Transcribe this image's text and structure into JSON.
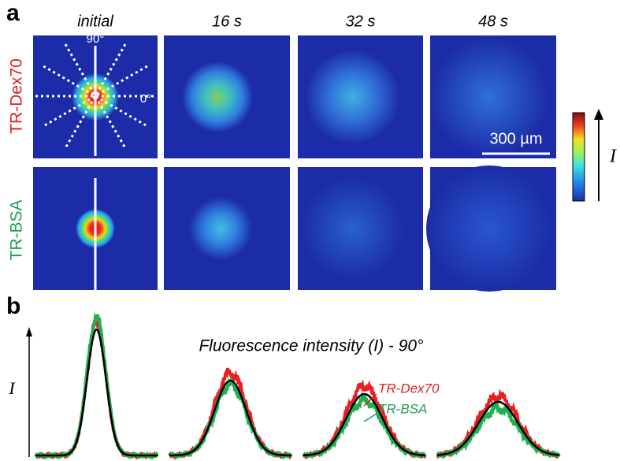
{
  "panel_a": {
    "label": "a",
    "time_labels": [
      "initial",
      "16 s",
      "32 s",
      "48 s"
    ],
    "row_labels": [
      "TR-Dex70",
      "TR-BSA"
    ],
    "angle_labels": [
      "90°",
      "0°"
    ],
    "scale_bar": "300 µm",
    "colorbar_label": "I"
  },
  "panel_b": {
    "label": "b",
    "title": "Fluorescence intensity (I) - 90°",
    "axis_label": "I",
    "legend": [
      "TR-Dex70",
      "TR-BSA"
    ]
  }
}
